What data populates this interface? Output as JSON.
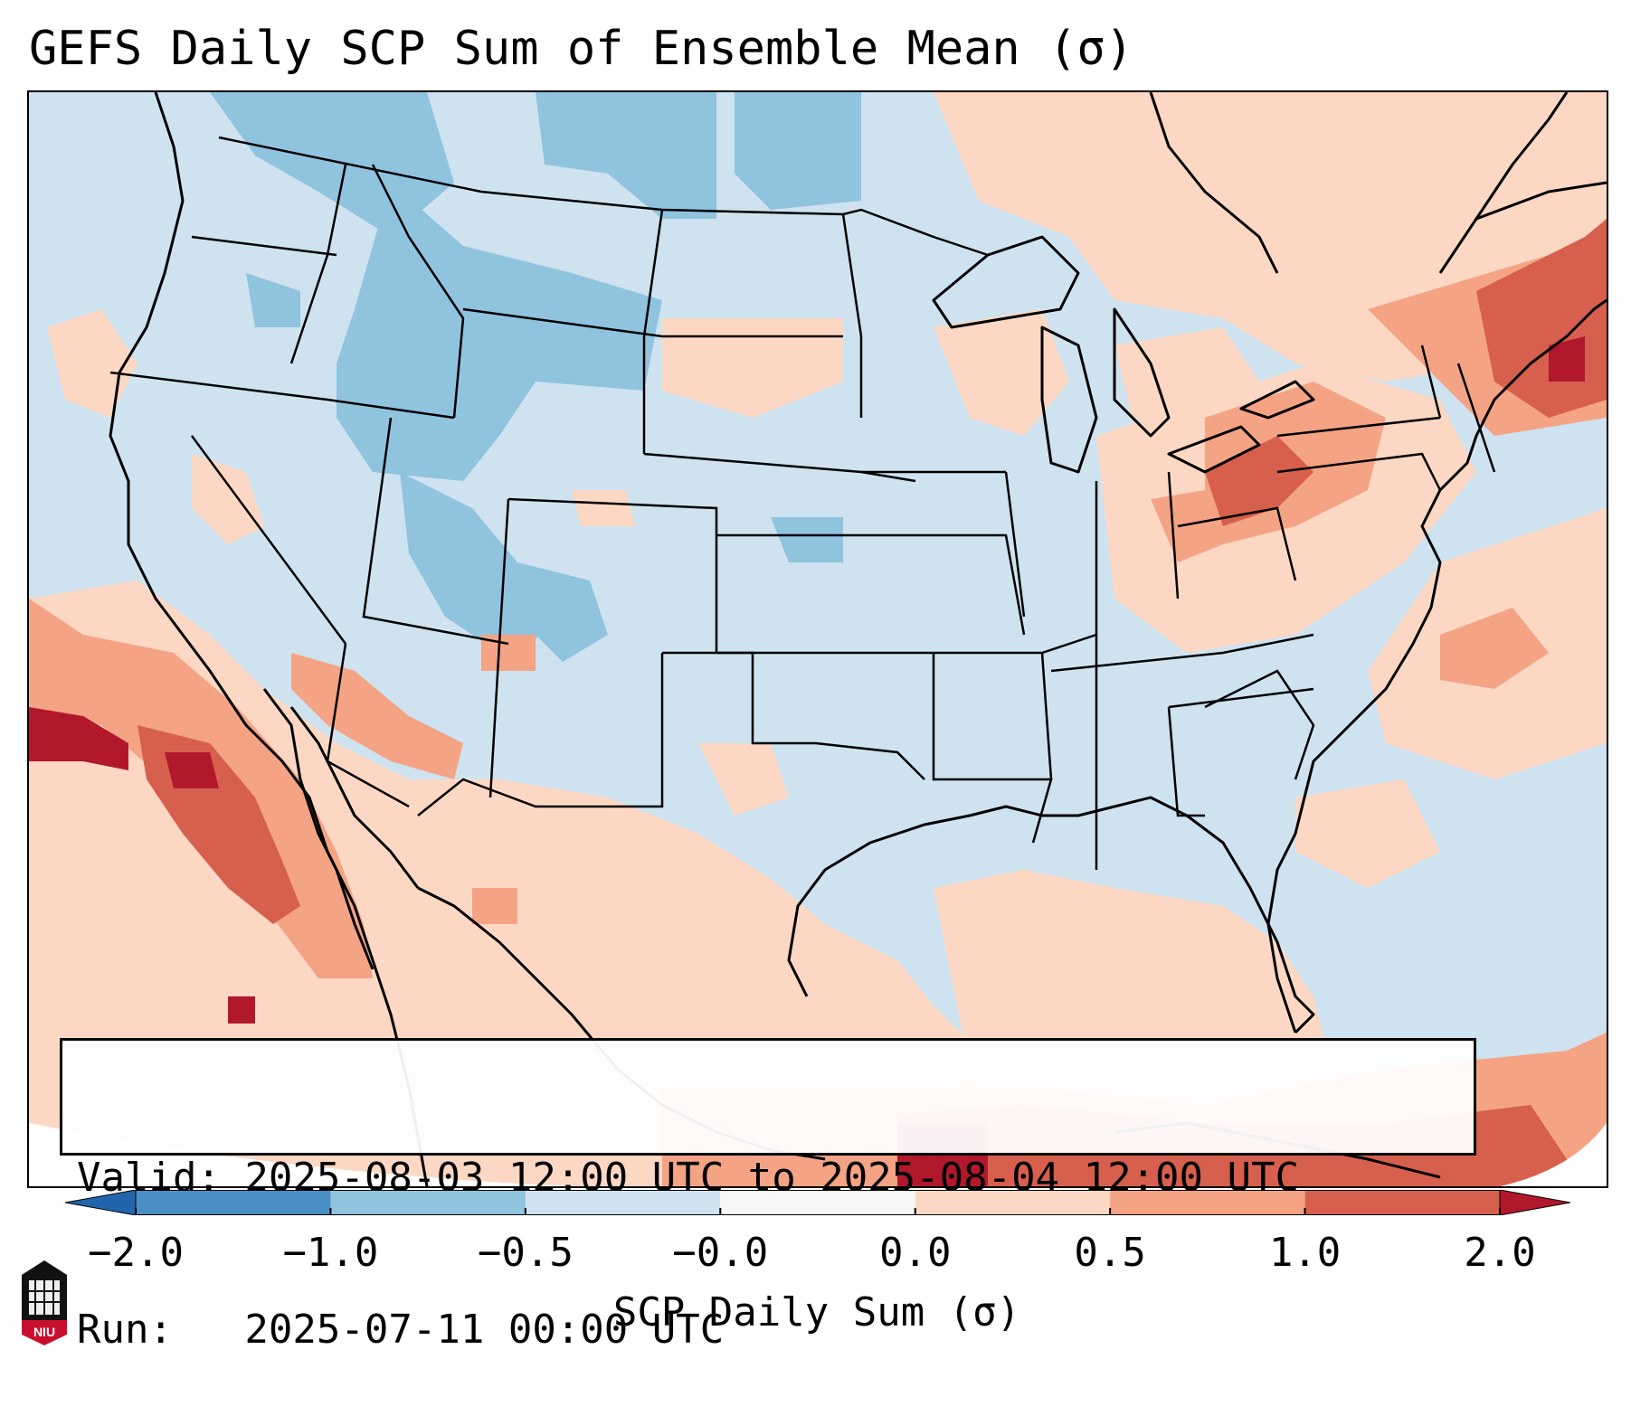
{
  "title": "GEFS Daily SCP Sum of Ensemble Mean (σ)",
  "info": {
    "valid_line": "Valid: 2025-08-03 12:00 UTC to 2025-08-04 12:00 UTC",
    "run_line": "Run:   2025-07-11 00:00 UTC"
  },
  "colorbar": {
    "label": "SCP Daily Sum (σ)",
    "ticks": [
      "−2.0",
      "−1.0",
      "−0.5",
      "−0.0",
      "0.0",
      "0.5",
      "1.0",
      "2.0"
    ],
    "bins": [
      {
        "range": "-2.0 to -1.0",
        "color": "#4a8fc4"
      },
      {
        "range": "-1.0 to -0.5",
        "color": "#90c3de"
      },
      {
        "range": "-0.5 to -0.0",
        "color": "#cfe2ef"
      },
      {
        "range": "-0.0 to 0.0",
        "color": "#f7f7f7"
      },
      {
        "range": "0.0 to 0.5",
        "color": "#fcd8c4"
      },
      {
        "range": "0.5 to 1.0",
        "color": "#f4a385"
      },
      {
        "range": "1.0 to 2.0",
        "color": "#d6604d"
      }
    ],
    "extend_low_color": "#2166ac",
    "extend_high_color": "#b2182b"
  },
  "colors": {
    "neutral_fill": "#cfe2ef",
    "light_blue": "#90c3de",
    "light_red": "#fcd8c4",
    "mid_red": "#f4a385",
    "dark_red": "#d6604d",
    "deep_red": "#b2182b"
  },
  "logo": {
    "text": "NIU",
    "icon": "university-shield-icon"
  }
}
